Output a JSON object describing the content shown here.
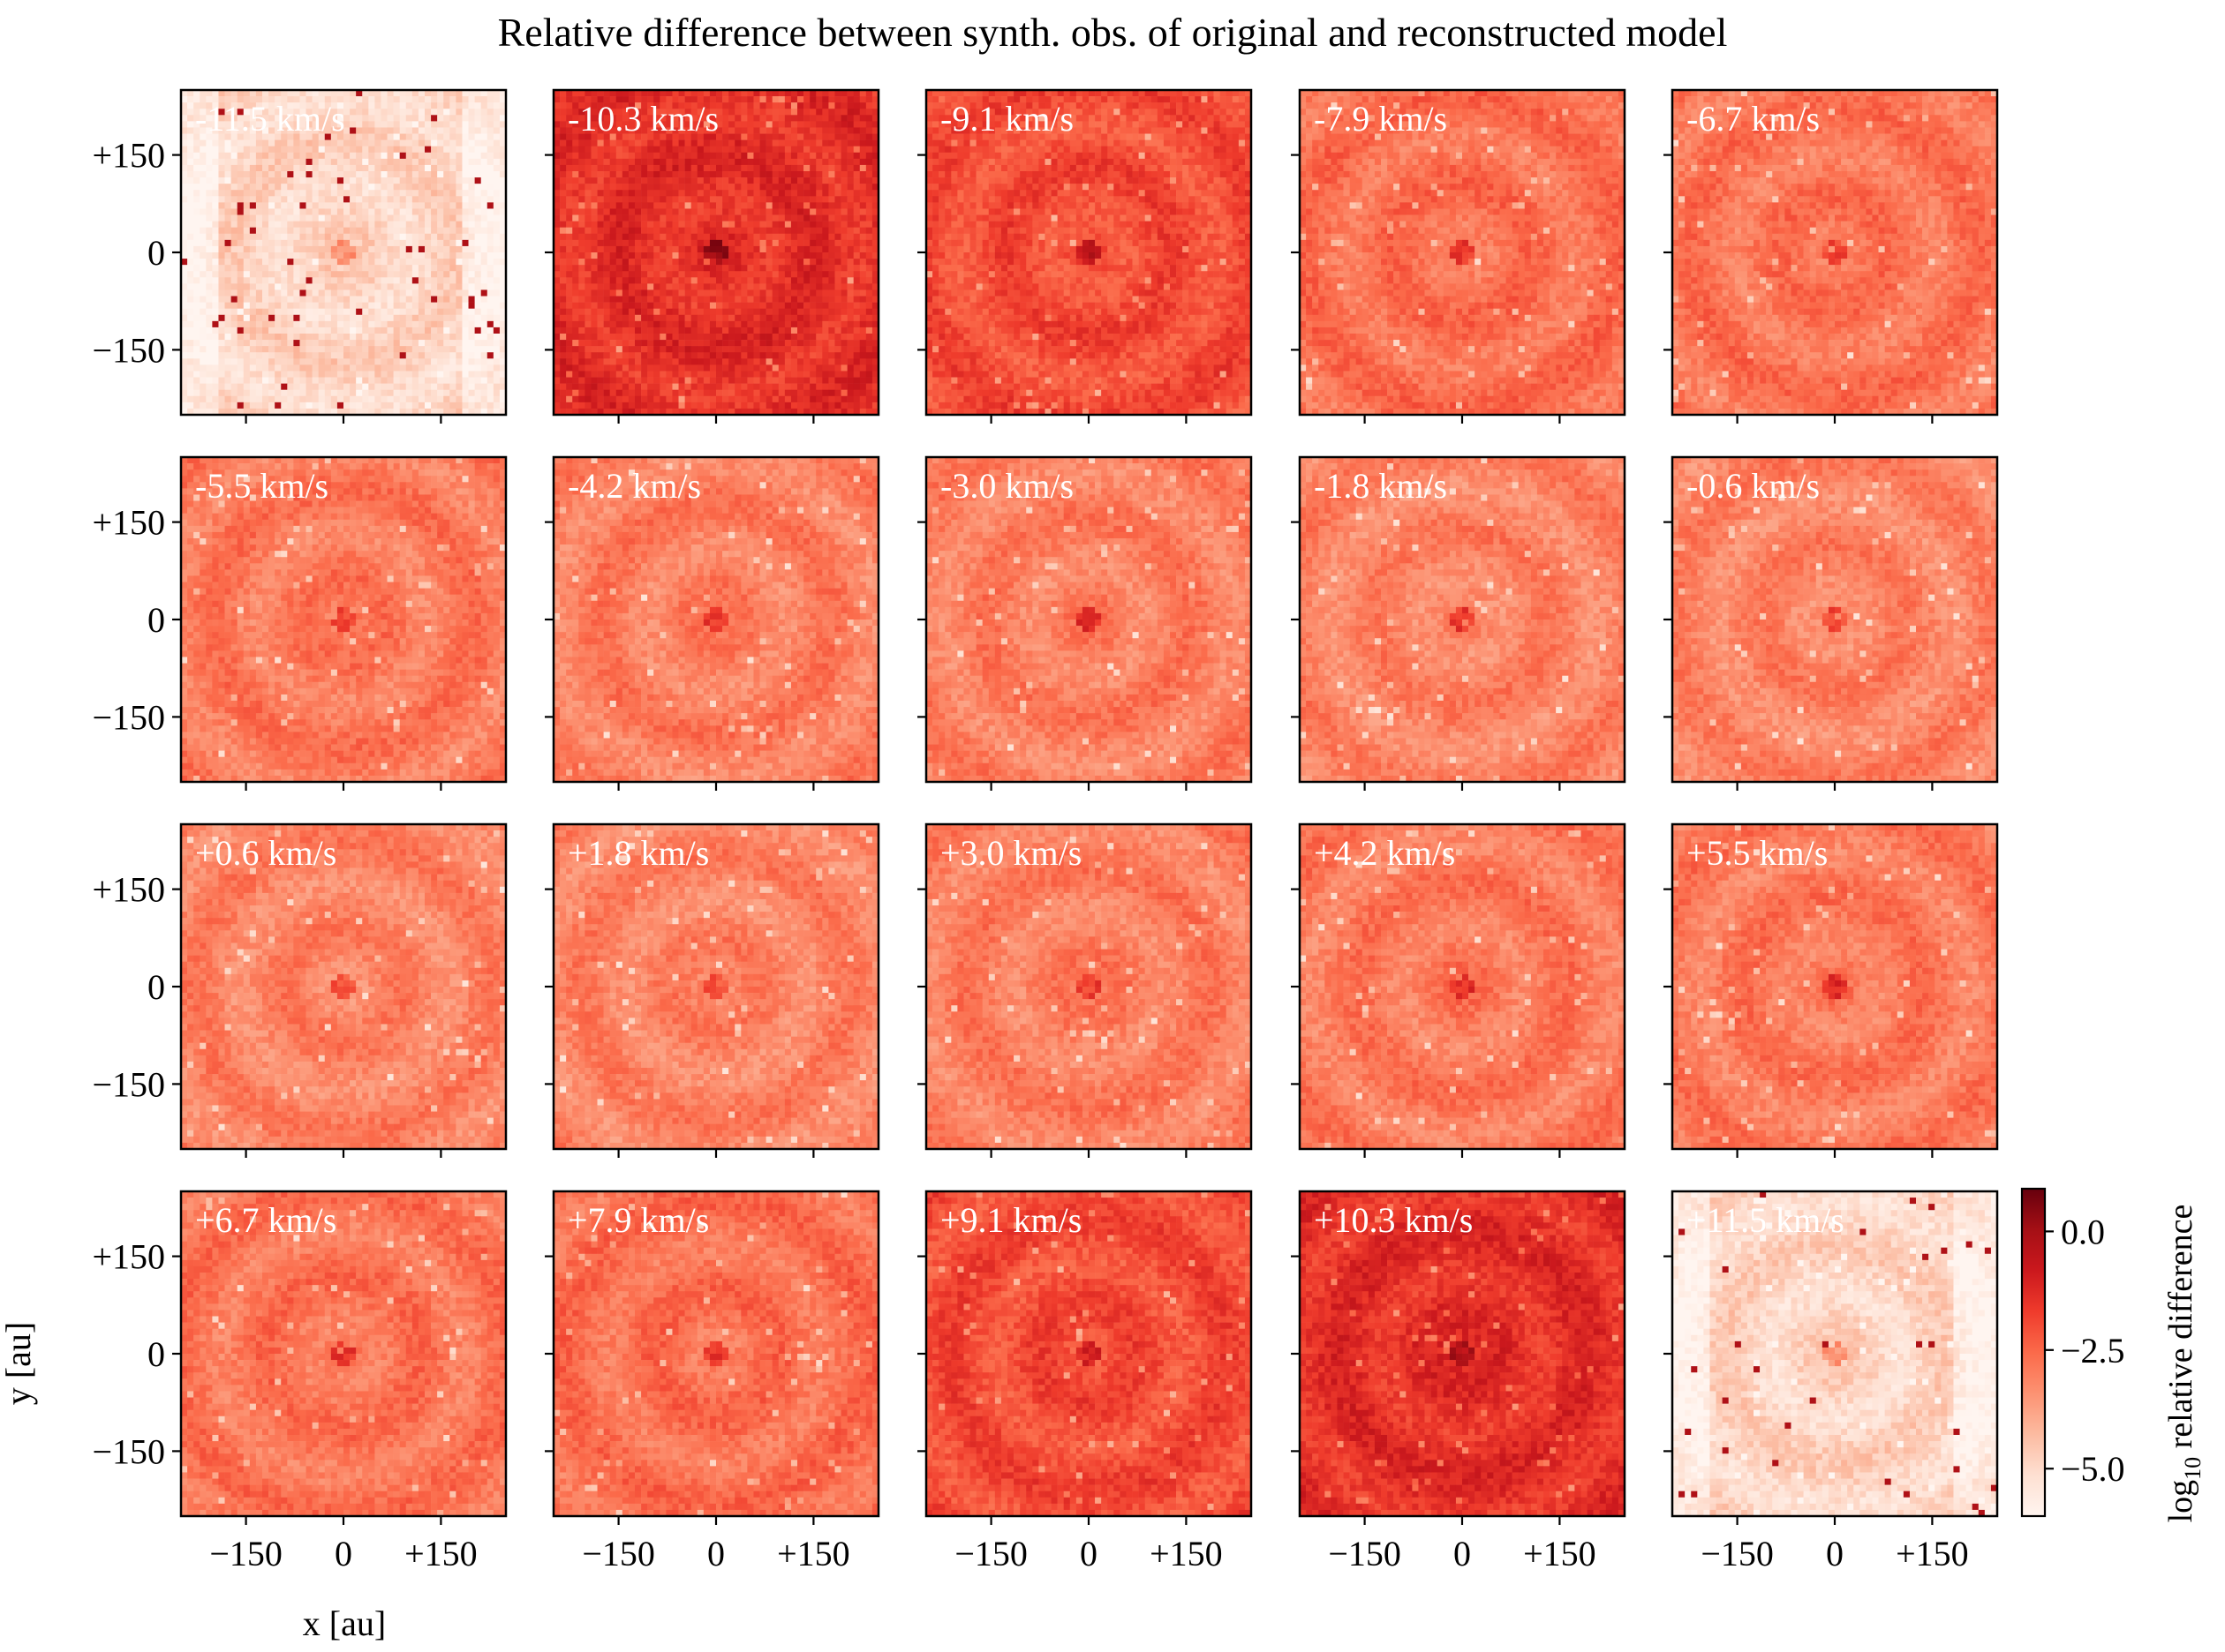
{
  "chart_data": {
    "type": "heatmap",
    "title": "Relative difference between synth. obs. of original and reconstructed model",
    "xlabel": "x [au]",
    "ylabel": "y [au]",
    "xlim": [
      -250,
      250
    ],
    "ylim": [
      -250,
      250
    ],
    "xticks": [
      -150,
      0,
      150
    ],
    "xtick_labels": [
      "−150",
      "0",
      "+150"
    ],
    "yticks": [
      150,
      0,
      -150
    ],
    "ytick_labels": [
      "+150",
      "0",
      "−150"
    ],
    "grid": false,
    "colorbar": {
      "label": "log",
      "label_sub": "10",
      "label_rest": " relative difference",
      "range": [
        -6.0,
        0.9
      ],
      "ticks": [
        0.0,
        -2.5,
        -5.0
      ],
      "tick_labels": [
        "0.0",
        "−2.5",
        "−5.0"
      ],
      "colors": [
        "#fff5f0",
        "#fee0d2",
        "#fcbba1",
        "#fc9272",
        "#fb6a4a",
        "#ef3b2c",
        "#cb181d",
        "#a50f15",
        "#67000d"
      ]
    },
    "panels": [
      {
        "label": "-11.5 km/s",
        "level": -4.9
      },
      {
        "label": "-10.3 km/s",
        "level": -1.4
      },
      {
        "label": "-9.1 km/s",
        "level": -2.0
      },
      {
        "label": "-7.9 km/s",
        "level": -2.7
      },
      {
        "label": "-6.7 km/s",
        "level": -2.8
      },
      {
        "label": "-5.5 km/s",
        "level": -2.9
      },
      {
        "label": "-4.2 km/s",
        "level": -3.0
      },
      {
        "label": "-3.0 km/s",
        "level": -3.0
      },
      {
        "label": "-1.8 km/s",
        "level": -3.1
      },
      {
        "label": "-0.6 km/s",
        "level": -3.1
      },
      {
        "label": "+0.6 km/s",
        "level": -3.1
      },
      {
        "label": "+1.8 km/s",
        "level": -3.1
      },
      {
        "label": "+3.0 km/s",
        "level": -3.0
      },
      {
        "label": "+4.2 km/s",
        "level": -2.9
      },
      {
        "label": "+5.5 km/s",
        "level": -2.9
      },
      {
        "label": "+6.7 km/s",
        "level": -2.8
      },
      {
        "label": "+7.9 km/s",
        "level": -2.7
      },
      {
        "label": "+9.1 km/s",
        "level": -2.0
      },
      {
        "label": "+10.3 km/s",
        "level": -1.4
      },
      {
        "label": "+11.5 km/s",
        "level": -4.9
      }
    ]
  }
}
